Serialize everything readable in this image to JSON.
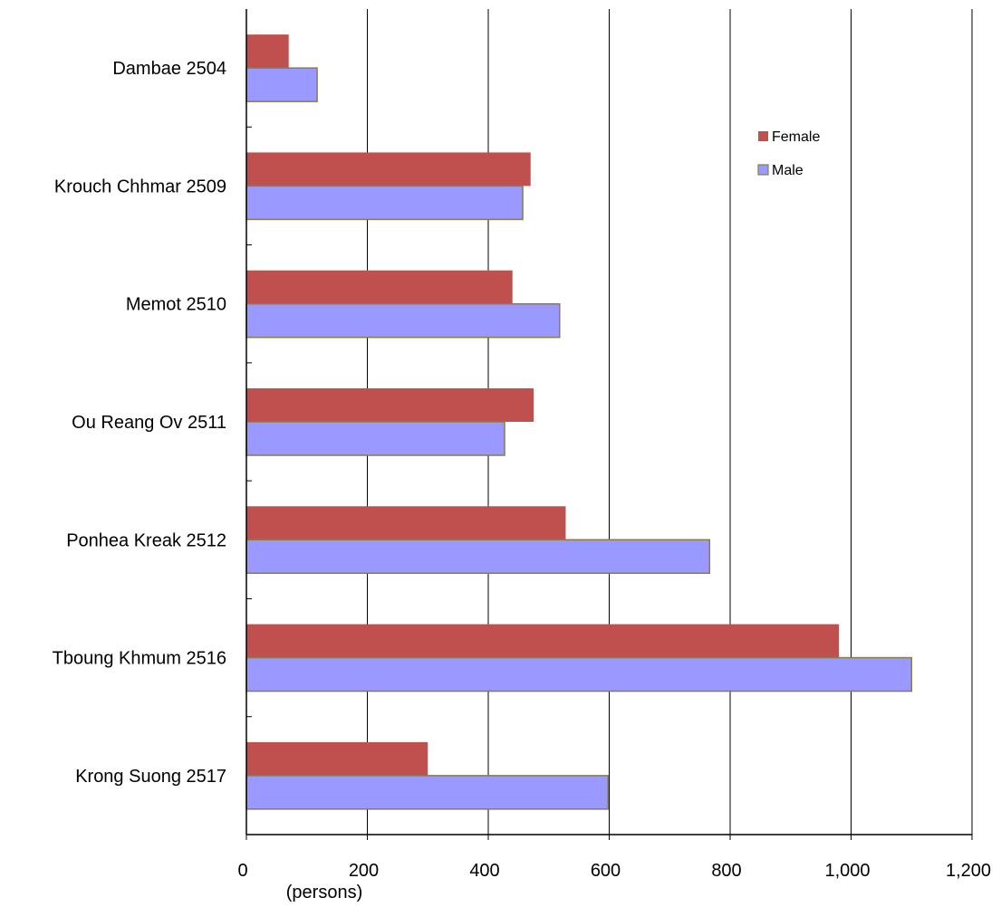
{
  "chart_data": {
    "type": "bar",
    "orientation": "horizontal",
    "categories": [
      "Dambae 2504",
      "Krouch Chhmar 2509",
      "Memot 2510",
      "Ou Reang Ov 2511",
      "Ponhea Kreak 2512",
      "Tboung Khmum 2516",
      "Krong Suong 2517"
    ],
    "series": [
      {
        "name": "Female",
        "color": "#c0504d",
        "values": [
          70,
          470,
          440,
          475,
          528,
          980,
          300
        ]
      },
      {
        "name": "Male",
        "color": "#9999ff",
        "values": [
          117,
          457,
          518,
          427,
          766,
          1100,
          598
        ]
      }
    ],
    "x_axis": {
      "label": "(persons)",
      "range": [
        0,
        1200
      ],
      "ticks": [
        0,
        200,
        400,
        600,
        800,
        1000,
        1200
      ],
      "tick_labels": [
        "0",
        "200",
        "400",
        "600",
        "800",
        "1,000",
        "1,200"
      ]
    },
    "gridlines": true,
    "legend_position": "upper-right inside plot"
  }
}
